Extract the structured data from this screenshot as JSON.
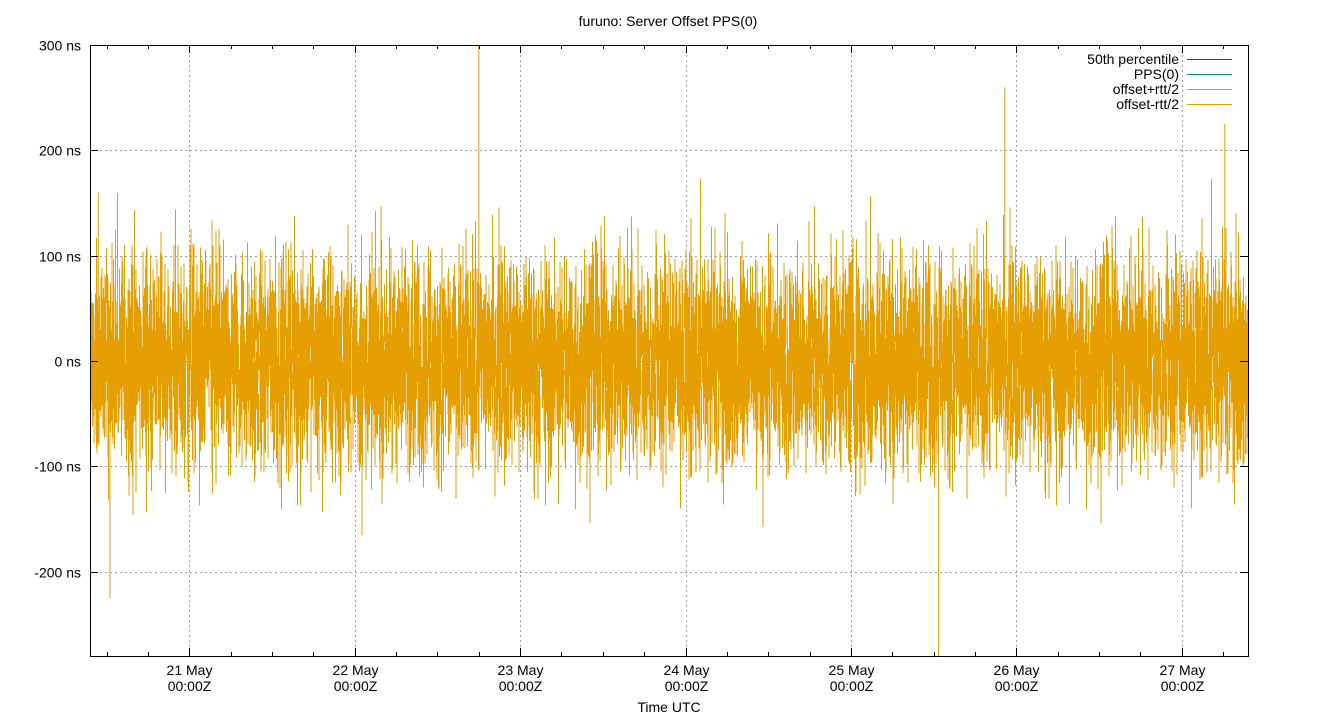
{
  "chart_data": {
    "type": "line",
    "title": "furuno: Server Offset PPS(0)",
    "xlabel": "Time UTC",
    "ylabel": "",
    "ylim": [
      -280,
      300
    ],
    "xlim": [
      20.4,
      27.4
    ],
    "y_ticks": [
      {
        "value": 300,
        "label": "300 ns"
      },
      {
        "value": 200,
        "label": "200 ns"
      },
      {
        "value": 100,
        "label": "100 ns"
      },
      {
        "value": 0,
        "label": "0 ns"
      },
      {
        "value": -100,
        "label": "-100 ns"
      },
      {
        "value": -200,
        "label": "-200 ns"
      }
    ],
    "x_ticks": [
      {
        "value": 21,
        "line1": "21 May",
        "line2": "00:00Z"
      },
      {
        "value": 22,
        "line1": "22 May",
        "line2": "00:00Z"
      },
      {
        "value": 23,
        "line1": "23 May",
        "line2": "00:00Z"
      },
      {
        "value": 24,
        "line1": "24 May",
        "line2": "00:00Z"
      },
      {
        "value": 25,
        "line1": "25 May",
        "line2": "00:00Z"
      },
      {
        "value": 26,
        "line1": "26 May",
        "line2": "00:00Z"
      },
      {
        "value": 27,
        "line1": "27 May",
        "line2": "00:00Z"
      }
    ],
    "grid": true,
    "legend_position": "top-right",
    "series": [
      {
        "name": "50th percentile",
        "color": "#9400d3",
        "values": []
      },
      {
        "name": "PPS(0)",
        "color": "#009e73",
        "values": []
      },
      {
        "name": "offset+rtt/2",
        "color": "#56b4e9",
        "values": []
      },
      {
        "name": "offset-rtt/2",
        "color": "#e69f00",
        "noise": {
          "typical_range": [
            -130,
            150
          ],
          "peak_max": 300,
          "peak_min": -280
        },
        "peaks": [
          {
            "x": 22.75,
            "y": 300
          },
          {
            "x": 25.53,
            "y": -280
          },
          {
            "x": 25.93,
            "y": 260
          },
          {
            "x": 27.26,
            "y": 225
          },
          {
            "x": 20.52,
            "y": -225
          },
          {
            "x": 20.45,
            "y": 160
          }
        ]
      }
    ]
  }
}
